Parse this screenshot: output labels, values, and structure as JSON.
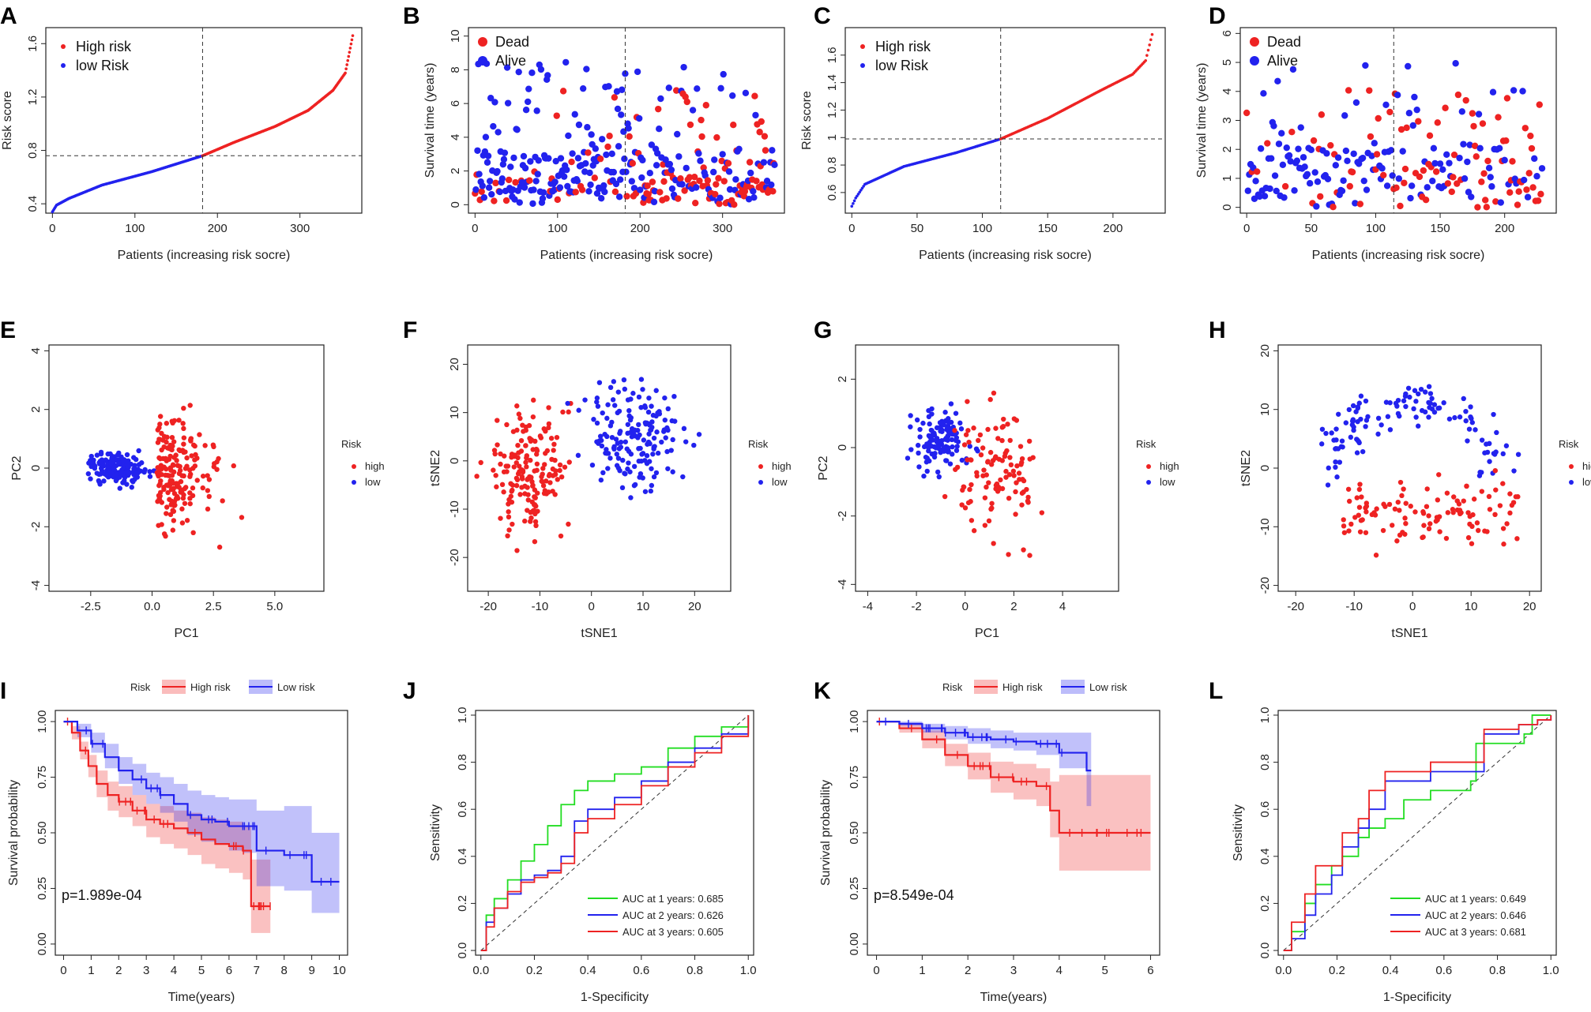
{
  "figure": {
    "panels": [
      "A",
      "B",
      "C",
      "D",
      "E",
      "F",
      "G",
      "H",
      "I",
      "J",
      "K",
      "L"
    ]
  },
  "chart_data": [
    {
      "panel": "A",
      "type": "scatter",
      "xlabel": "Patients (increasing risk socre)",
      "ylabel": "Risk score",
      "xticks": [
        0,
        100,
        200,
        300
      ],
      "yticks": [
        0.4,
        0.8,
        1.2,
        1.6
      ],
      "xlim": [
        -8,
        375
      ],
      "ylim": [
        0.33,
        1.72
      ],
      "cutoff_index": 182,
      "cutoff_value": 0.76,
      "n": 364,
      "curve": [
        [
          0,
          0.34
        ],
        [
          5,
          0.39
        ],
        [
          20,
          0.44
        ],
        [
          60,
          0.54
        ],
        [
          120,
          0.64
        ],
        [
          182,
          0.76
        ],
        [
          220,
          0.86
        ],
        [
          270,
          0.98
        ],
        [
          310,
          1.1
        ],
        [
          340,
          1.25
        ],
        [
          355,
          1.38
        ],
        [
          364,
          1.66
        ]
      ],
      "legend": [
        "High risk",
        "low Risk"
      ],
      "colors": {
        "high": "#ee2222",
        "low": "#2222ee"
      }
    },
    {
      "panel": "B",
      "type": "scatter",
      "xlabel": "Patients (increasing risk socre)",
      "ylabel": "Survival time (years)",
      "xticks": [
        0,
        100,
        200,
        300
      ],
      "yticks": [
        0,
        2,
        4,
        6,
        8,
        10
      ],
      "xlim": [
        -8,
        375
      ],
      "ylim": [
        -0.5,
        10.5
      ],
      "cutoff_index": 182,
      "n": 364,
      "max_time": 10.1,
      "legend": [
        "Dead",
        "Alive"
      ],
      "colors": {
        "dead": "#ee2222",
        "alive": "#2222ee"
      }
    },
    {
      "panel": "C",
      "type": "scatter",
      "xlabel": "Patients (increasing risk socre)",
      "ylabel": "Risk score",
      "xticks": [
        0,
        50,
        100,
        150,
        200
      ],
      "yticks": [
        0.6,
        0.8,
        1.0,
        1.2,
        1.4,
        1.6
      ],
      "xlim": [
        -5,
        240
      ],
      "ylim": [
        0.45,
        1.8
      ],
      "cutoff_index": 114,
      "cutoff_value": 0.99,
      "n": 230,
      "curve": [
        [
          0,
          0.5
        ],
        [
          3,
          0.56
        ],
        [
          10,
          0.66
        ],
        [
          40,
          0.79
        ],
        [
          80,
          0.89
        ],
        [
          114,
          0.99
        ],
        [
          150,
          1.14
        ],
        [
          190,
          1.34
        ],
        [
          215,
          1.46
        ],
        [
          225,
          1.56
        ],
        [
          230,
          1.75
        ]
      ],
      "legend": [
        "High risk",
        "low Risk"
      ],
      "colors": {
        "high": "#ee2222",
        "low": "#2222ee"
      }
    },
    {
      "panel": "D",
      "type": "scatter",
      "xlabel": "Patients (increasing risk socre)",
      "ylabel": "Survival time (years)",
      "xticks": [
        0,
        50,
        100,
        150,
        200
      ],
      "yticks": [
        0,
        1,
        2,
        3,
        4,
        5,
        6
      ],
      "xlim": [
        -5,
        240
      ],
      "ylim": [
        -0.2,
        6.2
      ],
      "cutoff_index": 114,
      "n": 230,
      "max_time": 5.95,
      "legend": [
        "Dead",
        "Alive"
      ],
      "colors": {
        "dead": "#ee2222",
        "alive": "#2222ee"
      }
    },
    {
      "panel": "E",
      "type": "scatter",
      "xlabel": "PC1",
      "ylabel": "PC2",
      "xticks": [
        "-2.5",
        "0.0",
        "2.5",
        "5.0"
      ],
      "xtick_values": [
        -2.5,
        0,
        2.5,
        5
      ],
      "yticks": [
        -4,
        -2,
        0,
        2,
        4
      ],
      "xlim": [
        -4.2,
        7
      ],
      "ylim": [
        -4.2,
        4.2
      ],
      "legend_title": "Risk",
      "legend": [
        "high",
        "low"
      ]
    },
    {
      "panel": "F",
      "type": "scatter",
      "xlabel": "tSNE1",
      "ylabel": "tSNE2",
      "xticks": [
        -20,
        -10,
        0,
        10,
        20
      ],
      "yticks": [
        -20,
        -10,
        0,
        10,
        20
      ],
      "xlim": [
        -24,
        27
      ],
      "ylim": [
        -27,
        24
      ],
      "legend_title": "Risk",
      "legend": [
        "high",
        "low"
      ]
    },
    {
      "panel": "G",
      "type": "scatter",
      "xlabel": "PC1",
      "ylabel": "PC2",
      "xticks": [
        -4,
        -2,
        0,
        2,
        4
      ],
      "yticks": [
        -4,
        -2,
        0,
        2
      ],
      "xlim": [
        -4.5,
        6.3
      ],
      "ylim": [
        -4.2,
        3
      ],
      "legend_title": "Risk",
      "legend": [
        "high",
        "low"
      ]
    },
    {
      "panel": "H",
      "type": "scatter",
      "xlabel": "tSNE1",
      "ylabel": "tSNE2",
      "xticks": [
        -20,
        -10,
        0,
        10,
        20
      ],
      "yticks": [
        -20,
        -10,
        0,
        10,
        20
      ],
      "xlim": [
        -23,
        22
      ],
      "ylim": [
        -21,
        21
      ],
      "legend_title": "Risk",
      "legend": [
        "high",
        "low"
      ]
    },
    {
      "panel": "I",
      "type": "line",
      "xlabel": "Time(years)",
      "ylabel": "Survival probability",
      "xticks": [
        0,
        1,
        2,
        3,
        4,
        5,
        6,
        7,
        8,
        9,
        10
      ],
      "yticks": [
        "0.00",
        "0.25",
        "0.50",
        "0.75",
        "1.00"
      ],
      "xlim": [
        -0.3,
        10.3
      ],
      "ylim": [
        -0.05,
        1.05
      ],
      "legend_title": "Risk",
      "legend": [
        "High risk",
        "Low risk"
      ],
      "pvalue": "p=1.989e-04",
      "series": [
        {
          "name": "High risk",
          "color": "#ee2222",
          "x": [
            0,
            0.3,
            0.6,
            0.9,
            1.2,
            1.6,
            2,
            2.5,
            3,
            3.5,
            4,
            4.5,
            5,
            5.5,
            6,
            6.5,
            6.8,
            7.5
          ],
          "y": [
            1,
            0.95,
            0.87,
            0.8,
            0.72,
            0.67,
            0.64,
            0.6,
            0.56,
            0.54,
            0.52,
            0.5,
            0.47,
            0.45,
            0.44,
            0.42,
            0.17,
            0.17
          ],
          "lower": [
            1,
            0.92,
            0.83,
            0.75,
            0.66,
            0.6,
            0.57,
            0.53,
            0.48,
            0.45,
            0.43,
            0.4,
            0.36,
            0.34,
            0.32,
            0.29,
            0.05,
            0.05
          ],
          "upper": [
            1,
            0.98,
            0.91,
            0.85,
            0.78,
            0.73,
            0.71,
            0.67,
            0.63,
            0.62,
            0.6,
            0.59,
            0.57,
            0.56,
            0.55,
            0.53,
            0.38,
            0.38
          ]
        },
        {
          "name": "Low risk",
          "color": "#2222ee",
          "x": [
            0,
            0.5,
            1,
            1.5,
            2,
            2.5,
            3,
            3.5,
            4,
            4.5,
            5,
            5.5,
            6,
            6.5,
            7,
            7.5,
            8,
            9,
            10
          ],
          "y": [
            1,
            0.96,
            0.9,
            0.84,
            0.78,
            0.74,
            0.7,
            0.67,
            0.63,
            0.58,
            0.56,
            0.55,
            0.53,
            0.53,
            0.42,
            0.42,
            0.4,
            0.28,
            0.28
          ],
          "lower": [
            1,
            0.93,
            0.86,
            0.79,
            0.72,
            0.67,
            0.63,
            0.59,
            0.55,
            0.49,
            0.46,
            0.45,
            0.42,
            0.41,
            0.26,
            0.26,
            0.24,
            0.14,
            0.14
          ],
          "upper": [
            1,
            0.99,
            0.95,
            0.9,
            0.84,
            0.81,
            0.77,
            0.75,
            0.72,
            0.69,
            0.67,
            0.66,
            0.65,
            0.65,
            0.6,
            0.6,
            0.62,
            0.5,
            0.5
          ]
        }
      ]
    },
    {
      "panel": "J",
      "type": "line",
      "xlabel": "1-Specificity",
      "ylabel": "Sensitivity",
      "xticks": [
        "0.0",
        "0.2",
        "0.4",
        "0.6",
        "0.8",
        "1.0"
      ],
      "yticks": [
        "0.0",
        "0.2",
        "0.4",
        "0.6",
        "0.8",
        "1.0"
      ],
      "xlim": [
        -0.02,
        1.02
      ],
      "ylim": [
        -0.02,
        1.02
      ],
      "series": [
        {
          "name": "AUC at 1 years: 0.685",
          "color": "#22dd22",
          "x": [
            0,
            0.02,
            0.05,
            0.1,
            0.15,
            0.2,
            0.25,
            0.3,
            0.35,
            0.4,
            0.5,
            0.6,
            0.7,
            0.8,
            0.9,
            1
          ],
          "y": [
            0,
            0.15,
            0.22,
            0.3,
            0.38,
            0.45,
            0.53,
            0.62,
            0.68,
            0.72,
            0.75,
            0.78,
            0.86,
            0.91,
            0.95,
            1
          ]
        },
        {
          "name": "AUC at 2 years: 0.626",
          "color": "#2222ee",
          "x": [
            0,
            0.02,
            0.05,
            0.1,
            0.15,
            0.2,
            0.25,
            0.3,
            0.35,
            0.4,
            0.5,
            0.6,
            0.7,
            0.8,
            0.9,
            1
          ],
          "y": [
            0,
            0.12,
            0.18,
            0.24,
            0.3,
            0.32,
            0.34,
            0.4,
            0.55,
            0.6,
            0.65,
            0.72,
            0.8,
            0.86,
            0.92,
            1
          ]
        },
        {
          "name": "AUC at 3 years: 0.605",
          "color": "#ee2222",
          "x": [
            0,
            0.02,
            0.05,
            0.1,
            0.15,
            0.2,
            0.25,
            0.3,
            0.35,
            0.4,
            0.5,
            0.6,
            0.7,
            0.8,
            0.9,
            1
          ],
          "y": [
            0,
            0.1,
            0.18,
            0.25,
            0.29,
            0.31,
            0.33,
            0.37,
            0.5,
            0.56,
            0.62,
            0.7,
            0.78,
            0.84,
            0.91,
            1
          ]
        }
      ],
      "diagonal": true
    },
    {
      "panel": "K",
      "type": "line",
      "xlabel": "Time(years)",
      "ylabel": "Survival probability",
      "xticks": [
        0,
        1,
        2,
        3,
        4,
        5,
        6
      ],
      "yticks": [
        "0.00",
        "0.25",
        "0.50",
        "0.75",
        "1.00"
      ],
      "xlim": [
        -0.2,
        6.2
      ],
      "ylim": [
        -0.05,
        1.05
      ],
      "legend_title": "Risk",
      "legend": [
        "High risk",
        "Low risk"
      ],
      "pvalue": "p=8.549e-04",
      "series": [
        {
          "name": "High risk",
          "color": "#ee2222",
          "x": [
            0,
            0.5,
            1,
            1.5,
            2,
            2.5,
            3,
            3.5,
            3.8,
            4,
            4.5,
            5,
            5.5,
            6
          ],
          "y": [
            1,
            0.97,
            0.92,
            0.85,
            0.8,
            0.75,
            0.73,
            0.71,
            0.6,
            0.5,
            0.5,
            0.5,
            0.5,
            0.5
          ],
          "lower": [
            1,
            0.95,
            0.88,
            0.8,
            0.74,
            0.68,
            0.65,
            0.62,
            0.48,
            0.33,
            0.33,
            0.33,
            0.33,
            0.33
          ],
          "upper": [
            1,
            0.99,
            0.96,
            0.9,
            0.86,
            0.82,
            0.81,
            0.79,
            0.73,
            0.76,
            0.76,
            0.76,
            0.76,
            0.76
          ]
        },
        {
          "name": "Low risk",
          "color": "#2222ee",
          "x": [
            0,
            0.5,
            1,
            1.5,
            2,
            2.5,
            3,
            3.5,
            4,
            4.3,
            4.6,
            4.7
          ],
          "y": [
            1,
            0.99,
            0.97,
            0.95,
            0.93,
            0.92,
            0.91,
            0.9,
            0.86,
            0.86,
            0.78,
            0.78
          ],
          "lower": [
            1,
            0.98,
            0.95,
            0.92,
            0.9,
            0.88,
            0.87,
            0.85,
            0.79,
            0.79,
            0.62,
            0.62
          ],
          "upper": [
            1,
            1,
            0.99,
            0.98,
            0.97,
            0.96,
            0.95,
            0.95,
            0.95,
            0.95,
            0.95,
            0.95
          ]
        }
      ]
    },
    {
      "panel": "L",
      "type": "line",
      "xlabel": "1-Specificity",
      "ylabel": "Sensitivity",
      "xticks": [
        "0.0",
        "0.2",
        "0.4",
        "0.6",
        "0.8",
        "1.0"
      ],
      "yticks": [
        "0.0",
        "0.2",
        "0.4",
        "0.6",
        "0.8",
        "1.0"
      ],
      "xlim": [
        -0.02,
        1.02
      ],
      "ylim": [
        -0.02,
        1.02
      ],
      "series": [
        {
          "name": "AUC at 1 years: 0.649",
          "color": "#22dd22",
          "x": [
            0,
            0.03,
            0.08,
            0.12,
            0.18,
            0.22,
            0.28,
            0.32,
            0.38,
            0.45,
            0.55,
            0.7,
            0.72,
            0.9,
            0.93,
            1
          ],
          "y": [
            0,
            0.08,
            0.2,
            0.28,
            0.36,
            0.4,
            0.48,
            0.52,
            0.56,
            0.64,
            0.68,
            0.72,
            0.88,
            0.92,
            1,
            1
          ]
        },
        {
          "name": "AUC at 2 years: 0.646",
          "color": "#2222ee",
          "x": [
            0,
            0.03,
            0.08,
            0.12,
            0.18,
            0.22,
            0.28,
            0.32,
            0.38,
            0.45,
            0.55,
            0.7,
            0.75,
            0.88,
            0.95,
            1
          ],
          "y": [
            0,
            0.05,
            0.15,
            0.24,
            0.32,
            0.44,
            0.52,
            0.6,
            0.72,
            0.72,
            0.76,
            0.76,
            0.92,
            0.96,
            0.98,
            1
          ]
        },
        {
          "name": "AUC at 3 years: 0.681",
          "color": "#ee2222",
          "x": [
            0,
            0.03,
            0.08,
            0.12,
            0.18,
            0.22,
            0.28,
            0.32,
            0.38,
            0.45,
            0.55,
            0.7,
            0.75,
            0.88,
            0.95,
            1
          ],
          "y": [
            0,
            0.12,
            0.24,
            0.36,
            0.36,
            0.5,
            0.56,
            0.68,
            0.76,
            0.76,
            0.8,
            0.8,
            0.94,
            0.96,
            0.98,
            1
          ]
        }
      ],
      "diagonal": true
    }
  ]
}
